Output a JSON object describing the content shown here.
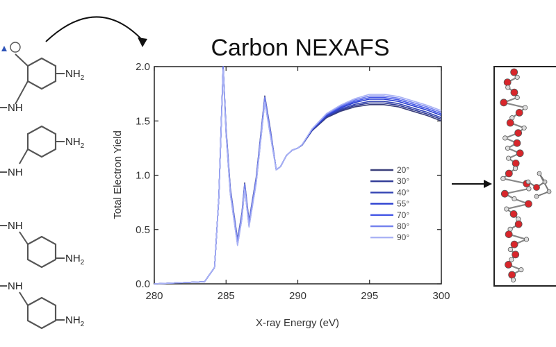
{
  "chart_data": {
    "type": "line",
    "title": "Carbon NEXAFS",
    "xlabel": "X-ray Energy (eV)",
    "ylabel": "Total Electron Yield",
    "xlim": [
      280,
      300
    ],
    "ylim": [
      0.0,
      2.0
    ],
    "x_ticks": [
      "280",
      "285",
      "290",
      "295",
      "300"
    ],
    "y_ticks": [
      "0.0",
      "0.5",
      "1.0",
      "1.5",
      "2.0"
    ],
    "grid": false,
    "legend_position": "lower-right",
    "series_colors": [
      "#3a3f7a",
      "#2f3a96",
      "#3343b3",
      "#2a3ed1",
      "#4658e6",
      "#7582ee",
      "#a9b2f5"
    ],
    "series_end_offsets": [
      -0.05,
      -0.035,
      -0.02,
      0.0,
      0.015,
      0.03,
      0.045
    ],
    "shape_x": [
      280,
      283.5,
      284.2,
      284.5,
      284.8,
      285.0,
      285.3,
      285.8,
      286.1,
      286.3,
      286.6,
      287.1,
      287.5,
      287.7,
      288.1,
      288.5,
      288.8,
      289.2,
      289.6,
      290.0,
      290.3,
      291.0,
      292.0,
      293.0,
      294.0,
      295.0,
      296.0,
      297.0,
      298.0,
      299.0,
      300.0
    ],
    "shape_y": [
      0.0,
      0.02,
      0.15,
      0.8,
      2.0,
      1.4,
      0.85,
      0.38,
      0.62,
      0.9,
      0.55,
      0.95,
      1.45,
      1.7,
      1.38,
      1.05,
      1.08,
      1.18,
      1.23,
      1.25,
      1.28,
      1.42,
      1.55,
      1.62,
      1.67,
      1.7,
      1.7,
      1.68,
      1.64,
      1.6,
      1.55
    ],
    "series": [
      {
        "name": "20°"
      },
      {
        "name": "30°"
      },
      {
        "name": "40°"
      },
      {
        "name": "55°"
      },
      {
        "name": "70°"
      },
      {
        "name": "80°"
      },
      {
        "name": "90°"
      }
    ]
  },
  "molecules": {
    "amine_labels": [
      "NH2",
      "NH2",
      "NH2",
      "NH2"
    ],
    "imine_labels": [
      "NH",
      "NH",
      "NH",
      "NH"
    ]
  }
}
